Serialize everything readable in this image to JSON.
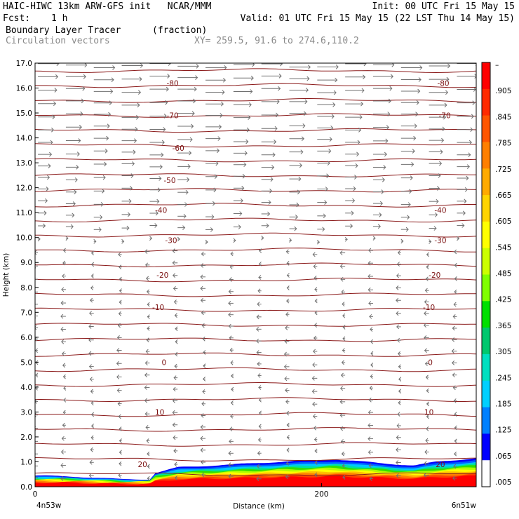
{
  "header": {
    "title_left": "HAIC-HIWC 13km ARW-GFS init   NCAR/MMM",
    "init": "Init: 00 UTC Fri 15 May 15",
    "fcst_label": "Fcst:",
    "fcst_value": "1 h",
    "valid": "Valid: 01 UTC Fri 15 May 15 (22 LST Thu 14 May 15)",
    "field": "Boundary Layer Tracer",
    "field_units": "(fraction)",
    "vector_label": "Circulation vectors",
    "xy_range": "XY= 259.5, 91.6 to 274.6,110.2"
  },
  "colors": {
    "contour": "#8b1a1a",
    "vector": "#707070",
    "scale": [
      "#ff0000",
      "#ff2a00",
      "#ff5500",
      "#ff7f00",
      "#ffaa00",
      "#ffd400",
      "#ffff00",
      "#ccff00",
      "#80ff00",
      "#00e000",
      "#00c86e",
      "#00e0c0",
      "#00d0ff",
      "#0080ff",
      "#0000ff",
      "#ffffff"
    ]
  },
  "chart_data": {
    "type": "heatmap",
    "xlabel": "Distance (km)",
    "ylabel": "Height (km)",
    "xlim": [
      0,
      308
    ],
    "ylim": [
      0.0,
      17.0
    ],
    "x_ticks": [
      "0",
      "200"
    ],
    "x_tick_values": [
      0,
      200
    ],
    "x_endpoints": [
      "4n53w",
      "6n51w"
    ],
    "y_ticks": [
      "0.0",
      "1.0",
      "2.0",
      "3.0",
      "4.0",
      "5.0",
      "6.0",
      "7.0",
      "8.0",
      "9.0",
      "10.0",
      "11.0",
      "12.0",
      "13.0",
      "14.0",
      "15.0",
      "16.0",
      "17.0"
    ],
    "colorbar_ticks": [
      ".005",
      ".065",
      ".125",
      ".185",
      ".245",
      ".305",
      ".365",
      ".425",
      ".485",
      ".545",
      ".605",
      ".665",
      ".725",
      ".785",
      ".845",
      ".905",
      "–"
    ],
    "contour_levels": [
      -80,
      -70,
      -60,
      -50,
      -40,
      -30,
      -20,
      -10,
      0,
      10,
      20
    ],
    "contour_labels_left": [
      "-80",
      "-70",
      "-60",
      "-50",
      "-40",
      "-30",
      "-20",
      "-10",
      "0",
      "10",
      "20"
    ],
    "contour_labels_right": [
      "-80",
      "-70",
      "-40",
      "-30",
      "-20",
      "-10",
      "0",
      "10",
      "20"
    ],
    "tracer_top_km": [
      {
        "x": 0,
        "top": 0.45
      },
      {
        "x": 30,
        "top": 0.4
      },
      {
        "x": 60,
        "top": 0.3
      },
      {
        "x": 80,
        "top": 0.3
      },
      {
        "x": 84,
        "top": 0.55
      },
      {
        "x": 100,
        "top": 0.78
      },
      {
        "x": 140,
        "top": 0.9
      },
      {
        "x": 170,
        "top": 1.0
      },
      {
        "x": 210,
        "top": 1.1
      },
      {
        "x": 240,
        "top": 0.95
      },
      {
        "x": 265,
        "top": 0.85
      },
      {
        "x": 280,
        "top": 1.0
      },
      {
        "x": 308,
        "top": 1.15
      }
    ]
  }
}
